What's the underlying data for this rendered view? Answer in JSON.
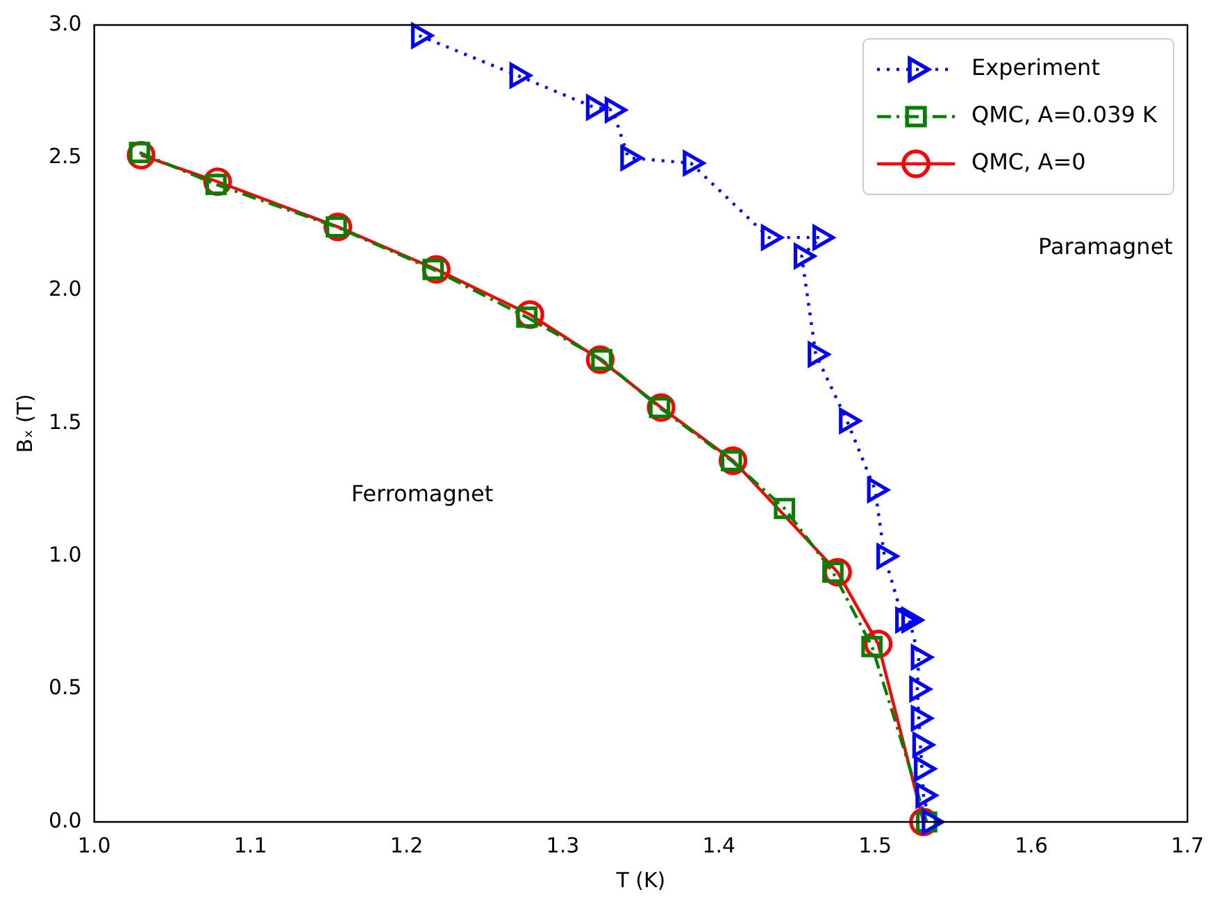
{
  "chart_data": {
    "type": "line",
    "xlabel": "T (K)",
    "ylabel": "Bₓ (T)",
    "xlim": [
      1.0,
      1.7
    ],
    "ylim": [
      0.0,
      3.0
    ],
    "xticks": [
      {
        "value": 1.0,
        "label": "1.0"
      },
      {
        "value": 1.1,
        "label": "1.1"
      },
      {
        "value": 1.2,
        "label": "1.2"
      },
      {
        "value": 1.3,
        "label": "1.3"
      },
      {
        "value": 1.4,
        "label": "1.4"
      },
      {
        "value": 1.5,
        "label": "1.5"
      },
      {
        "value": 1.6,
        "label": "1.6"
      },
      {
        "value": 1.7,
        "label": "1.7"
      }
    ],
    "yticks": [
      {
        "value": 0,
        "label": "0.0"
      },
      {
        "value": 0.5,
        "label": "0.5"
      },
      {
        "value": 1.0,
        "label": "1.0"
      },
      {
        "value": 1.5,
        "label": "1.5"
      },
      {
        "value": 2.0,
        "label": "2.0"
      },
      {
        "value": 2.5,
        "label": "2.5"
      },
      {
        "value": 3.0,
        "label": "3.0"
      }
    ],
    "grid": false,
    "legend": "top right",
    "annotations": [
      "Paramagnet",
      "Ferromagnet"
    ],
    "series": [
      {
        "name": "Experiment",
        "color": "#0000ff",
        "marker": "triangle",
        "line_style": "dotted",
        "x": [
          1.208,
          1.271,
          1.32,
          1.332,
          1.342,
          1.382,
          1.432,
          1.465,
          1.453,
          1.462,
          1.482,
          1.5,
          1.506,
          1.518,
          1.522,
          1.528,
          1.527,
          1.528,
          1.529,
          1.53,
          1.531,
          1.535
        ],
        "values": [
          2.96,
          2.81,
          2.69,
          2.68,
          2.5,
          2.48,
          2.2,
          2.2,
          2.13,
          1.76,
          1.51,
          1.25,
          1.0,
          0.76,
          0.76,
          0.62,
          0.5,
          0.39,
          0.29,
          0.2,
          0.1,
          0.0
        ]
      },
      {
        "name": "QMC, A=0.039 K",
        "color": "#008000",
        "marker": "square",
        "line_style": "dashed",
        "x": [
          1.029,
          1.078,
          1.155,
          1.217,
          1.277,
          1.325,
          1.362,
          1.408,
          1.442,
          1.473,
          1.498,
          1.533
        ],
        "values": [
          2.52,
          2.4,
          2.24,
          2.08,
          1.9,
          1.74,
          1.56,
          1.36,
          1.18,
          0.94,
          0.66,
          0.0
        ]
      },
      {
        "name": "QMC, A=0",
        "color": "#ff0000",
        "marker": "circle",
        "line_style": "solid",
        "x": [
          1.03,
          1.079,
          1.156,
          1.219,
          1.279,
          1.324,
          1.363,
          1.409,
          1.476,
          1.502,
          1.531
        ],
        "values": [
          2.51,
          2.41,
          2.24,
          2.08,
          1.91,
          1.74,
          1.56,
          1.36,
          0.94,
          0.67,
          0.0
        ]
      }
    ]
  }
}
